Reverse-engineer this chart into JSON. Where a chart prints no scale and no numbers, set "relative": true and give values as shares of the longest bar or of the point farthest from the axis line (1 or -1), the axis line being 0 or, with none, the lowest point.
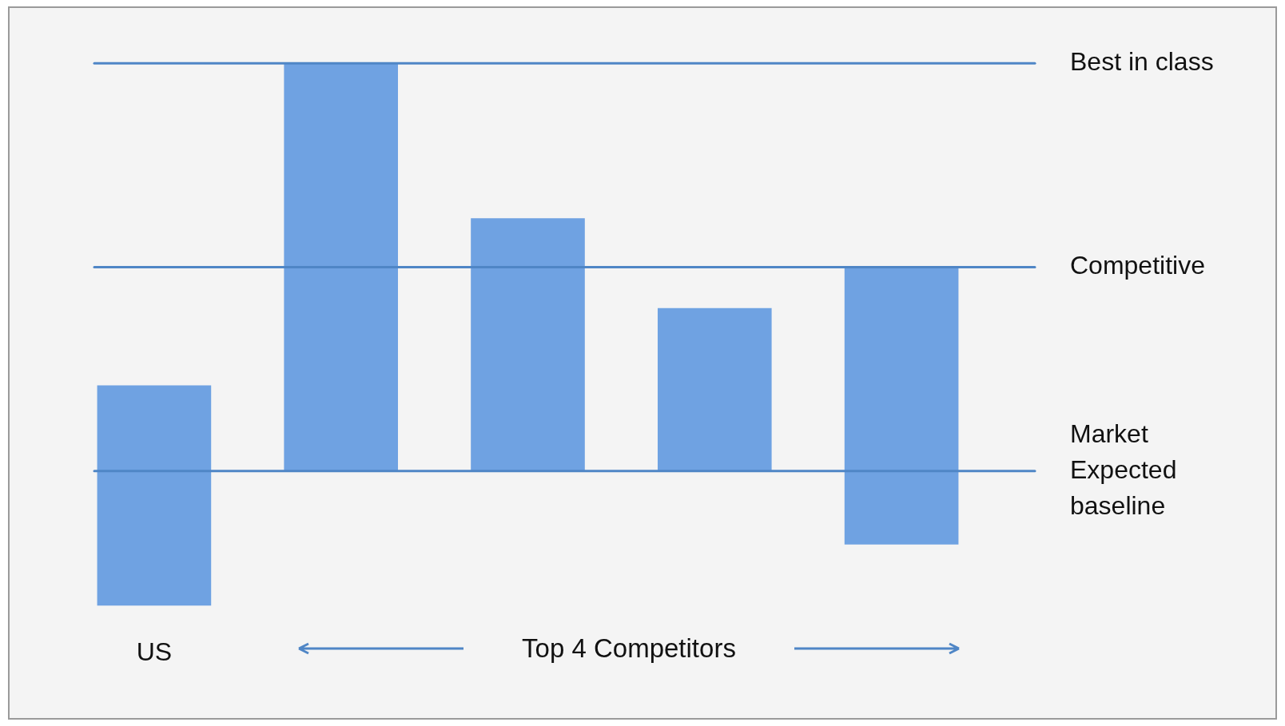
{
  "chart_data": {
    "type": "bar",
    "relative": true,
    "categories": [
      "US",
      null,
      null,
      null,
      null
    ],
    "stacked": true,
    "series": [
      {
        "color": "#6fa2e2",
        "values": [
          -0.33,
          0,
          0,
          0,
          -0.18
        ]
      },
      {
        "color": "#6fa2e2",
        "values": [
          0.21,
          1.0,
          0.62,
          0.4,
          0.5
        ]
      }
    ],
    "ref_lines": [
      {
        "axis": "y",
        "value": 1,
        "label": "Best in class",
        "color": "#4f86c6"
      },
      {
        "axis": "y",
        "value": 0.5,
        "label": "Competitive",
        "color": "#4f86c6"
      },
      {
        "axis": "y",
        "value": 0,
        "label": "Market Expected baseline",
        "color": "#4f86c6"
      }
    ],
    "annotations": [
      "Top 4 Competitors"
    ]
  }
}
